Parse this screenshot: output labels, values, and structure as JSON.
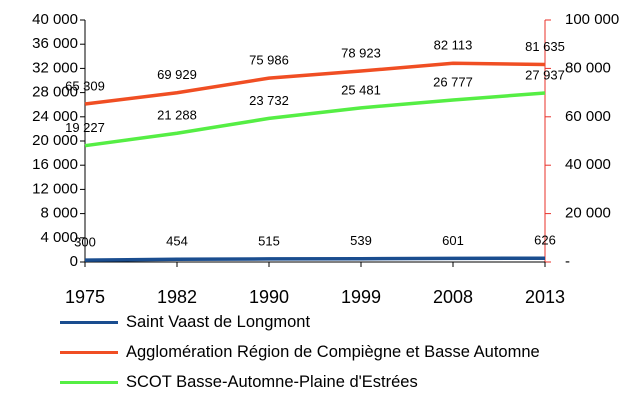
{
  "chart_data": {
    "type": "line",
    "categories": [
      "1975",
      "1982",
      "1990",
      "1999",
      "2008",
      "2013"
    ],
    "ylim": [
      0,
      40000
    ],
    "yticks": [
      {
        "value": 0,
        "label": "0"
      },
      {
        "value": 4000,
        "label": "4 000"
      },
      {
        "value": 8000,
        "label": "8 000"
      },
      {
        "value": 12000,
        "label": "12 000"
      },
      {
        "value": 16000,
        "label": "16 000"
      },
      {
        "value": 20000,
        "label": "20 000"
      },
      {
        "value": 24000,
        "label": "24 000"
      },
      {
        "value": 28000,
        "label": "28 000"
      },
      {
        "value": 32000,
        "label": "32 000"
      },
      {
        "value": 36000,
        "label": "36 000"
      },
      {
        "value": 40000,
        "label": "40 000"
      }
    ],
    "y2lim": [
      0,
      100000
    ],
    "y2ticks": [
      {
        "value": 0,
        "label": "-"
      },
      {
        "value": 20000,
        "label": "20 000"
      },
      {
        "value": 40000,
        "label": "40 000"
      },
      {
        "value": 60000,
        "label": "60 000"
      },
      {
        "value": 80000,
        "label": "80 000"
      },
      {
        "value": 100000,
        "label": "100 000"
      }
    ],
    "y2color": "#e8312a",
    "series": [
      {
        "name": "Saint Vaast de Longmont",
        "color": "#1a4d8f",
        "values": [
          300,
          454,
          515,
          539,
          601,
          626
        ]
      },
      {
        "name": "Agglomération Région de Compiègne et Basse Automne",
        "color": "#f04e23",
        "axis": "y2",
        "values": [
          65309,
          69929,
          75986,
          78923,
          82113,
          81635
        ],
        "value_labels": [
          "65 309",
          "69 929",
          "75 986",
          "78 923",
          "82 113",
          "81 635"
        ]
      },
      {
        "name": "SCOT Basse-Automne-Plaine d'Estrées",
        "color": "#55ee44",
        "values": [
          19227,
          21288,
          23732,
          25481,
          26777,
          27937
        ],
        "value_labels": [
          "19 227",
          "21 288",
          "23 732",
          "25 481",
          "26 777",
          "27 937"
        ]
      }
    ]
  }
}
